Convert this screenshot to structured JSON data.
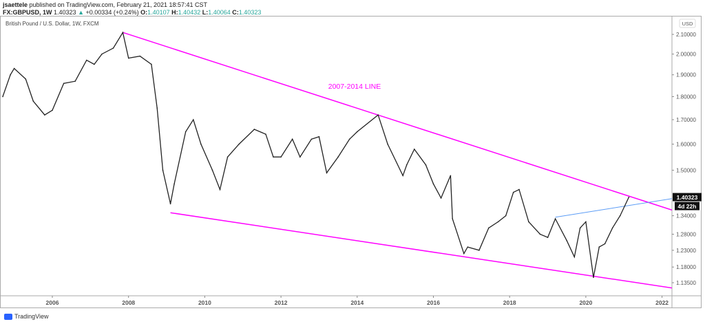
{
  "header": {
    "publisher": "jsaettele",
    "published_text": "published on TradingView.com, February 21, 2021 18:57:41 CST",
    "symbol": "FX:GBPUSD, 1W",
    "last": "1.40323",
    "change": "+0.00334 (+0.24%)",
    "o_label": "O:",
    "o": "1.40107",
    "h_label": "H:",
    "h": "1.40432",
    "l_label": "L:",
    "l": "1.40064",
    "c_label": "C:",
    "c": "1.40323"
  },
  "footer": {
    "logo_text": "TradingView"
  },
  "chart_data": {
    "type": "line",
    "title": "British Pound / U.S. Dollar, 1W, FXCM",
    "currency_label": "USD",
    "y_scale": "log",
    "ylim": [
      1.105,
      2.17
    ],
    "xlim": [
      2004.65,
      2022.6
    ],
    "y_ticks": [
      "2.10000",
      "2.00000",
      "1.90000",
      "1.80000",
      "1.70000",
      "1.60000",
      "1.50000",
      "1.34000",
      "1.28000",
      "1.23000",
      "1.18000",
      "1.13500"
    ],
    "x_ticks": [
      "2006",
      "2008",
      "2010",
      "2012",
      "2014",
      "2016",
      "2018",
      "2020",
      "2022"
    ],
    "last_price_label": "1.40323",
    "countdown_label": "4d 22h",
    "colors": {
      "price": "#222222",
      "trendline": "#ff00ff",
      "blue_line": "#5b9cf6",
      "label": "#ff00ff"
    },
    "annotation": "2007-2014 LINE",
    "series": [
      {
        "x": [
          2004.7,
          2004.9,
          2005.0,
          2005.3,
          2005.5,
          2005.8,
          2006.0,
          2006.3,
          2006.6,
          2006.9,
          2007.1,
          2007.3,
          2007.6,
          2007.85,
          2008.0,
          2008.3,
          2008.6,
          2008.75,
          2008.9,
          2009.1,
          2009.2,
          2009.5,
          2009.7,
          2009.9,
          2010.2,
          2010.4,
          2010.6,
          2010.9,
          2011.3,
          2011.6,
          2011.8,
          2012.0,
          2012.3,
          2012.5,
          2012.8,
          2013.0,
          2013.2,
          2013.5,
          2013.8,
          2014.0,
          2014.55,
          2014.8,
          2015.2,
          2015.3,
          2015.5,
          2015.8,
          2016.0,
          2016.2,
          2016.45,
          2016.5,
          2016.8,
          2016.9,
          2017.2,
          2017.45,
          2017.7,
          2017.9,
          2018.1,
          2018.25,
          2018.5,
          2018.8,
          2019.0,
          2019.2,
          2019.5,
          2019.7,
          2019.85,
          2020.0,
          2020.2,
          2020.35,
          2020.5,
          2020.7,
          2020.9,
          2021.13
        ],
        "y": [
          1.8,
          1.9,
          1.93,
          1.88,
          1.78,
          1.72,
          1.74,
          1.86,
          1.87,
          1.97,
          1.95,
          2.0,
          2.03,
          2.11,
          1.98,
          1.99,
          1.95,
          1.75,
          1.5,
          1.38,
          1.45,
          1.65,
          1.7,
          1.6,
          1.5,
          1.43,
          1.55,
          1.6,
          1.66,
          1.64,
          1.55,
          1.55,
          1.62,
          1.55,
          1.62,
          1.63,
          1.49,
          1.55,
          1.62,
          1.65,
          1.72,
          1.6,
          1.48,
          1.52,
          1.58,
          1.52,
          1.45,
          1.4,
          1.48,
          1.33,
          1.22,
          1.24,
          1.23,
          1.3,
          1.32,
          1.34,
          1.42,
          1.43,
          1.32,
          1.28,
          1.27,
          1.33,
          1.26,
          1.21,
          1.3,
          1.32,
          1.15,
          1.24,
          1.25,
          1.3,
          1.34,
          1.403
        ]
      }
    ],
    "lines": [
      {
        "name": "upper-trendline",
        "from": [
          2007.85,
          2.11
        ],
        "to": [
          2022.6,
          1.345
        ]
      },
      {
        "name": "lower-trendline",
        "from": [
          2009.1,
          1.35
        ],
        "to": [
          2022.6,
          1.115
        ]
      },
      {
        "name": "blue-line",
        "from": [
          2019.2,
          1.335
        ],
        "to": [
          2022.6,
          1.405
        ]
      }
    ],
    "grid": false
  }
}
